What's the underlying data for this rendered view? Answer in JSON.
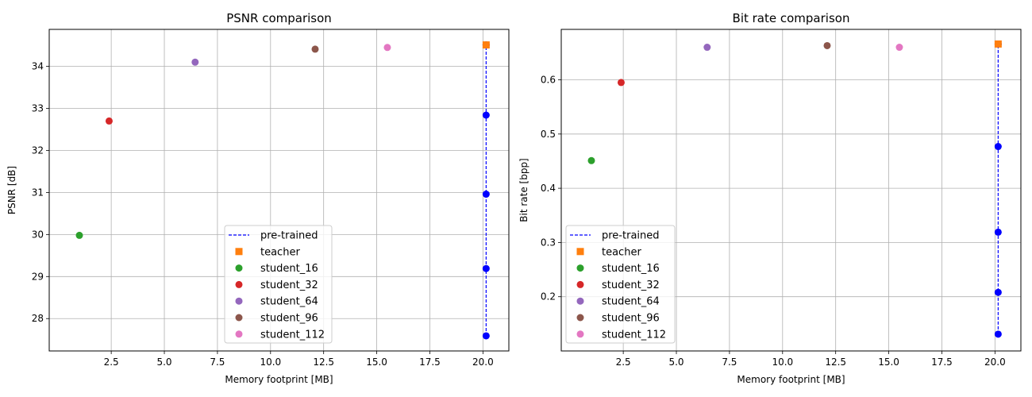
{
  "chart_data": [
    {
      "type": "scatter",
      "title": "PSNR comparison",
      "xlabel": "Memory footprint [MB]",
      "ylabel": "PSNR [dB]",
      "xlim": [
        -0.42,
        21.22
      ],
      "ylim": [
        27.23,
        34.88
      ],
      "xticks": [
        2.5,
        5.0,
        7.5,
        10.0,
        12.5,
        15.0,
        17.5,
        20.0
      ],
      "xtick_labels": [
        "2.5",
        "5.0",
        "7.5",
        "10.0",
        "12.5",
        "15.0",
        "17.5",
        "20.0"
      ],
      "yticks": [
        28,
        29,
        30,
        31,
        32,
        33,
        34
      ],
      "ytick_labels": [
        "28",
        "29",
        "30",
        "31",
        "32",
        "33",
        "34"
      ],
      "grid": true,
      "legend_position": "lower-center",
      "series": [
        {
          "name": "pre-trained",
          "kind": "line",
          "color": "#0000ff",
          "x": [
            20.15,
            20.15,
            20.15,
            20.15,
            20.15,
            20.15
          ],
          "y": [
            27.59,
            29.19,
            30.96,
            32.84,
            34.51,
            34.51
          ]
        },
        {
          "name": "teacher",
          "kind": "square",
          "color": "#ff7f0e",
          "x": [
            20.15
          ],
          "y": [
            34.51
          ]
        },
        {
          "name": "student_16",
          "kind": "circle",
          "color": "#2ca02c",
          "x": [
            1.0
          ],
          "y": [
            29.98
          ]
        },
        {
          "name": "student_32",
          "kind": "circle",
          "color": "#d62728",
          "x": [
            2.4
          ],
          "y": [
            32.7
          ]
        },
        {
          "name": "student_64",
          "kind": "circle",
          "color": "#9467bd",
          "x": [
            6.45
          ],
          "y": [
            34.1
          ]
        },
        {
          "name": "student_96",
          "kind": "circle",
          "color": "#8c564b",
          "x": [
            12.1
          ],
          "y": [
            34.41
          ]
        },
        {
          "name": "student_112",
          "kind": "circle",
          "color": "#e377c2",
          "x": [
            15.5
          ],
          "y": [
            34.45
          ]
        }
      ]
    },
    {
      "type": "scatter",
      "title": "Bit rate comparison",
      "xlabel": "Memory footprint [MB]",
      "ylabel": "Bit rate [bpp]",
      "xlim": [
        -0.42,
        21.22
      ],
      "ylim": [
        0.1,
        0.693
      ],
      "xticks": [
        2.5,
        5.0,
        7.5,
        10.0,
        12.5,
        15.0,
        17.5,
        20.0
      ],
      "xtick_labels": [
        "2.5",
        "5.0",
        "7.5",
        "10.0",
        "12.5",
        "15.0",
        "17.5",
        "20.0"
      ],
      "yticks": [
        0.2,
        0.3,
        0.4,
        0.5,
        0.6
      ],
      "ytick_labels": [
        "0.2",
        "0.3",
        "0.4",
        "0.5",
        "0.6"
      ],
      "grid": true,
      "legend_position": "lower-left",
      "series": [
        {
          "name": "pre-trained",
          "kind": "line",
          "color": "#0000ff",
          "x": [
            20.15,
            20.15,
            20.15,
            20.15,
            20.15,
            20.15
          ],
          "y": [
            0.131,
            0.208,
            0.319,
            0.477,
            0.666,
            0.666
          ]
        },
        {
          "name": "teacher",
          "kind": "square",
          "color": "#ff7f0e",
          "x": [
            20.15
          ],
          "y": [
            0.666
          ]
        },
        {
          "name": "student_16",
          "kind": "circle",
          "color": "#2ca02c",
          "x": [
            1.0
          ],
          "y": [
            0.451
          ]
        },
        {
          "name": "student_32",
          "kind": "circle",
          "color": "#d62728",
          "x": [
            2.4
          ],
          "y": [
            0.595
          ]
        },
        {
          "name": "student_64",
          "kind": "circle",
          "color": "#9467bd",
          "x": [
            6.45
          ],
          "y": [
            0.66
          ]
        },
        {
          "name": "student_96",
          "kind": "circle",
          "color": "#8c564b",
          "x": [
            12.1
          ],
          "y": [
            0.663
          ]
        },
        {
          "name": "student_112",
          "kind": "circle",
          "color": "#e377c2",
          "x": [
            15.5
          ],
          "y": [
            0.66
          ]
        }
      ]
    }
  ]
}
